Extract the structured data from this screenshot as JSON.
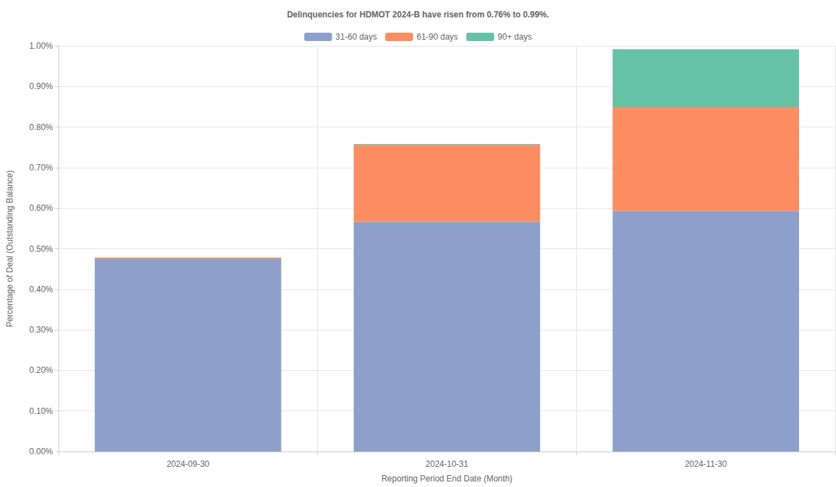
{
  "chart_data": {
    "type": "bar",
    "title": "Delinquencies for HDMOT 2024-B have risen from 0.76% to 0.99%.",
    "x_label": "Reporting Period End Date (Month)",
    "y_label": "Percentage of Deal (Outstanding Balance)",
    "categories": [
      "2024-09-30",
      "2024-10-31",
      "2024-11-30"
    ],
    "series": [
      {
        "name": "31-60 days",
        "color": "#8da0cb",
        "values": [
          0.475,
          0.567,
          0.593
        ]
      },
      {
        "name": "61-90 days",
        "color": "#fc8d62",
        "values": [
          0.003,
          0.189,
          0.256
        ]
      },
      {
        "name": "90+ days",
        "color": "#66c2a5",
        "values": [
          0,
          0.002,
          0.143
        ]
      }
    ],
    "stacked": true,
    "ylim": [
      0,
      1.0
    ],
    "yticks": [
      {
        "value": 0,
        "label": "0.00%"
      },
      {
        "value": 0.1,
        "label": "0.10%"
      },
      {
        "value": 0.2,
        "label": "0.20%"
      },
      {
        "value": 0.3,
        "label": "0.30%"
      },
      {
        "value": 0.4,
        "label": "0.40%"
      },
      {
        "value": 0.5,
        "label": "0.50%"
      },
      {
        "value": 0.6,
        "label": "0.60%"
      },
      {
        "value": 0.7,
        "label": "0.70%"
      },
      {
        "value": 0.8,
        "label": "0.80%"
      },
      {
        "value": 0.9,
        "label": "0.90%"
      },
      {
        "value": 1.0,
        "label": "1.00%"
      }
    ],
    "grid": true,
    "legend": "top"
  }
}
